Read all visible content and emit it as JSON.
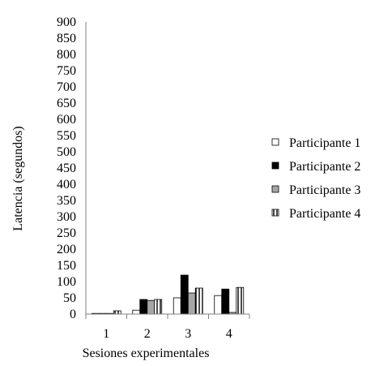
{
  "chart_data": {
    "type": "bar",
    "title": "",
    "xlabel": "Sesiones experimentales",
    "ylabel": "Latencia (segundos)",
    "ylim": [
      0,
      900
    ],
    "yticks": [
      0,
      50,
      100,
      150,
      200,
      250,
      300,
      350,
      400,
      450,
      500,
      550,
      600,
      650,
      700,
      750,
      800,
      850,
      900
    ],
    "categories": [
      "1",
      "2",
      "3",
      "4"
    ],
    "grid": false,
    "legend": "right",
    "series": [
      {
        "name": "Participante 1",
        "style": "white",
        "values": [
          2,
          12,
          50,
          57
        ]
      },
      {
        "name": "Participante 2",
        "style": "black",
        "values": [
          2,
          45,
          120,
          77
        ]
      },
      {
        "name": "Participante 3",
        "style": "gray",
        "values": [
          2,
          42,
          65,
          5
        ]
      },
      {
        "name": "Participante 4",
        "style": "vertical-stripes",
        "values": [
          10,
          45,
          80,
          82
        ]
      }
    ]
  }
}
